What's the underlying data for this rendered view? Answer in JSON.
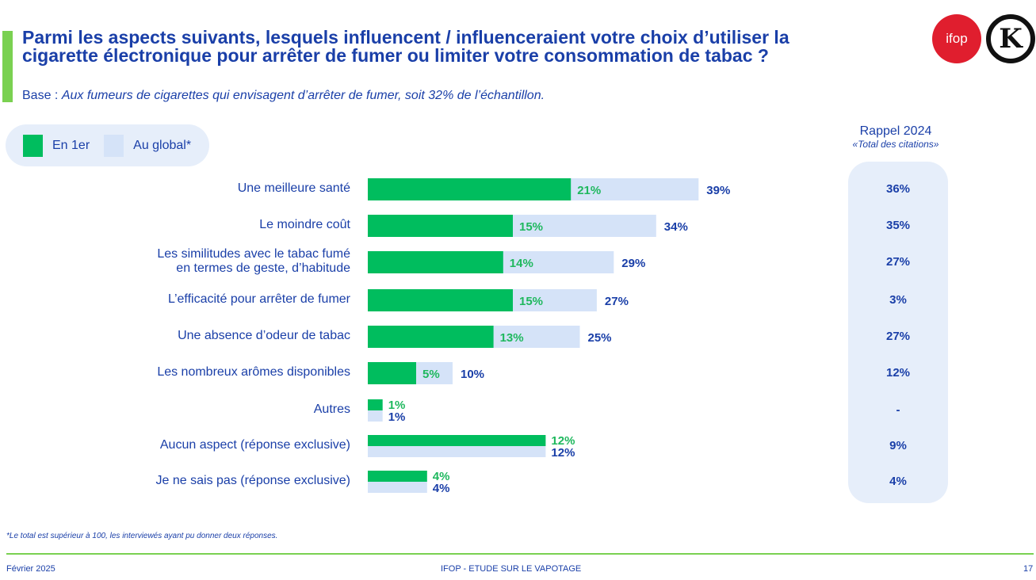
{
  "header": {
    "title": "Parmi les aspects suivants, lesquels influencent / influenceraient votre choix d’utiliser la cigarette électronique pour arrêter de fumer ou limiter votre consommation de tabac ?",
    "base_label": "Base : ",
    "base_text": "Aux fumeurs de cigarettes qui envisagent d’arrêter de fumer, soit 32% de l’échantillon."
  },
  "logos": {
    "ifop": "ifop",
    "partner": "K"
  },
  "legend": {
    "first": "En 1er",
    "global": "Au global*"
  },
  "colors": {
    "first": "#00bd5e",
    "global": "#d5e3f8",
    "text": "#1a3fa8",
    "first_text": "#1fb85e",
    "accent": "#7ad151"
  },
  "rappel": {
    "title": "Rappel 2024",
    "subtitle": "«Total des citations»"
  },
  "chart_data": {
    "type": "bar",
    "orientation": "horizontal",
    "title": "Parmi les aspects suivants, lesquels influencent / influenceraient votre choix d’utiliser la cigarette électronique pour arrêter de fumer ou limiter votre consommation de tabac ?",
    "categories": [
      "Une meilleure santé",
      "Le moindre coût",
      "Les similitudes avec le tabac fumé en termes de geste, d’habitude",
      "L’efficacité pour arrêter de fumer",
      "Une absence d’odeur de tabac",
      "Les nombreux arômes disponibles",
      "Autres",
      "Aucun aspect (réponse exclusive)",
      "Je ne sais pas (réponse exclusive)"
    ],
    "category_lines": [
      [
        "Une meilleure santé"
      ],
      [
        "Le moindre coût"
      ],
      [
        "Les similitudes avec le tabac fumé",
        "en termes de geste, d’habitude"
      ],
      [
        "L’efficacité pour arrêter de fumer"
      ],
      [
        "Une absence d’odeur de tabac"
      ],
      [
        "Les nombreux arômes disponibles"
      ],
      [
        "Autres"
      ],
      [
        "Aucun aspect (réponse exclusive)"
      ],
      [
        "Je ne sais pas (réponse exclusive)"
      ]
    ],
    "series": [
      {
        "name": "En 1er",
        "values": [
          21,
          15,
          14,
          15,
          13,
          5,
          1,
          12,
          4
        ],
        "labels": [
          "21%",
          "15%",
          "14%",
          "15%",
          "13%",
          "5%",
          "1%",
          "12%",
          "4%"
        ]
      },
      {
        "name": "Au global*",
        "values": [
          39,
          34,
          29,
          27,
          25,
          10,
          1,
          12,
          4
        ],
        "labels": [
          "39%",
          "34%",
          "29%",
          "27%",
          "25%",
          "10%",
          "1%",
          "12%",
          "4%"
        ]
      }
    ],
    "split_rows": [
      6,
      7,
      8
    ],
    "rappel_2024": [
      "36%",
      "35%",
      "27%",
      "3%",
      "27%",
      "12%",
      "-",
      "9%",
      "4%"
    ],
    "xlim": [
      0,
      40
    ],
    "grid": false,
    "legend": "top-left"
  },
  "footer": {
    "note": "*Le total est supérieur à 100, les interviewés ayant pu donner deux réponses.",
    "date": "Février 2025",
    "center": "IFOP - ETUDE SUR LE VAPOTAGE",
    "page": "17"
  }
}
